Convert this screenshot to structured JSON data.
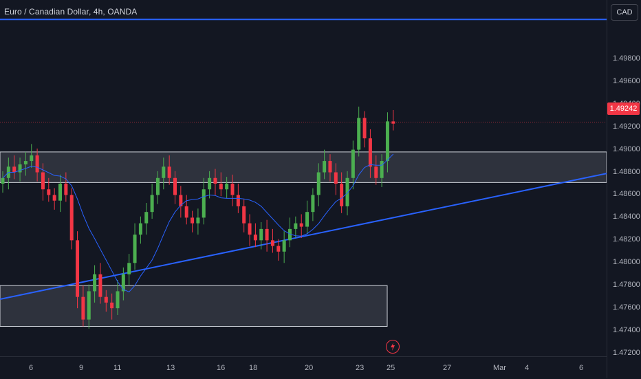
{
  "title": "Euro / Canadian Dollar, 4h, OANDA",
  "currency_label": "CAD",
  "last_price": "1.49242",
  "colors": {
    "up": "#26a69a",
    "down": "#f23645",
    "upCandle": "#4caf50",
    "ma": "#2962ff",
    "trendline": "#2962ff",
    "bg": "#131722"
  },
  "icons": {
    "flash": "flash-icon"
  },
  "chart_data": {
    "type": "candlestick",
    "symbol": "EURCAD",
    "timeframe": "4h",
    "source": "OANDA",
    "ylim": [
      1.472,
      1.502
    ],
    "y_ticks": [
      "1.49800",
      "1.49600",
      "1.49400",
      "1.49200",
      "1.49000",
      "1.48800",
      "1.48600",
      "1.48400",
      "1.48200",
      "1.48000",
      "1.47800",
      "1.47600",
      "1.47400",
      "1.47200"
    ],
    "x_ticks": [
      "6",
      "9",
      "11",
      "13",
      "16",
      "18",
      "20",
      "23",
      "25",
      "27",
      "Mar",
      "4",
      "6"
    ],
    "last_price": 1.49242,
    "horizontal_line": 1.5015,
    "zones": [
      {
        "from": 1.4871,
        "to": 1.4898
      },
      {
        "from": 1.4744,
        "to": 1.478
      }
    ],
    "trendline": {
      "start": {
        "x": 0,
        "y": 1.4768
      },
      "end": {
        "x": 100,
        "y": 1.4879
      }
    },
    "moving_average_visible": true,
    "candles_close": [
      1.4875,
      1.4885,
      1.488,
      1.4887,
      1.489,
      1.4895,
      1.488,
      1.4865,
      1.486,
      1.4855,
      1.487,
      1.486,
      1.482,
      1.477,
      1.475,
      1.4775,
      1.479,
      1.477,
      1.4765,
      1.476,
      1.4775,
      1.479,
      1.48,
      1.4825,
      1.4835,
      1.4845,
      1.486,
      1.4875,
      1.4885,
      1.4875,
      1.486,
      1.485,
      1.484,
      1.4835,
      1.484,
      1.4865,
      1.4875,
      1.487,
      1.4865,
      1.487,
      1.486,
      1.485,
      1.4835,
      1.4825,
      1.482,
      1.483,
      1.482,
      1.4815,
      1.481,
      1.482,
      1.483,
      1.4835,
      1.4832,
      1.4845,
      1.486,
      1.488,
      1.489,
      1.488,
      1.487,
      1.485,
      1.4875,
      1.49,
      1.4928,
      1.491,
      1.4885,
      1.4875,
      1.489,
      1.4925,
      1.4923
    ]
  }
}
